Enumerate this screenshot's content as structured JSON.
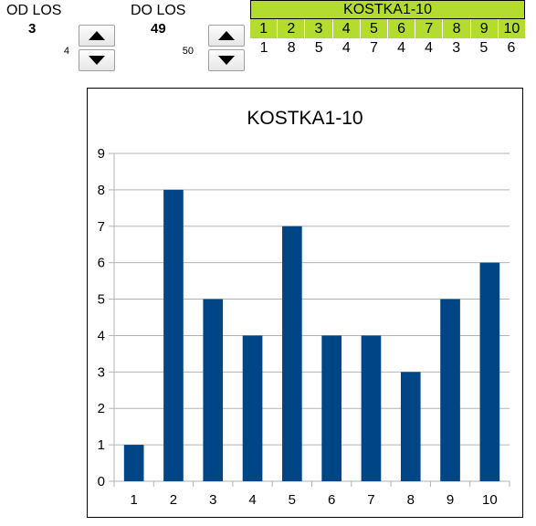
{
  "od": {
    "label": "OD LOS",
    "value": "3",
    "spinner_value": "4"
  },
  "do": {
    "label": "DO LOS",
    "value": "49",
    "spinner_value": "50"
  },
  "table": {
    "title": "KOSTKA1-10",
    "headers": [
      "1",
      "2",
      "3",
      "4",
      "5",
      "6",
      "7",
      "8",
      "9",
      "10"
    ],
    "values": [
      "1",
      "8",
      "5",
      "4",
      "7",
      "4",
      "4",
      "3",
      "5",
      "6"
    ],
    "header_color": "#b3dc2f"
  },
  "icons": {
    "up": "arrow-up-icon",
    "down": "arrow-down-icon"
  },
  "chart_data": {
    "type": "bar",
    "title": "KOSTKA1-10",
    "categories": [
      "1",
      "2",
      "3",
      "4",
      "5",
      "6",
      "7",
      "8",
      "9",
      "10"
    ],
    "values": [
      1,
      8,
      5,
      4,
      7,
      4,
      4,
      3,
      5,
      6
    ],
    "xlabel": "",
    "ylabel": "",
    "ylim": [
      0,
      9
    ],
    "yticks": [
      "0",
      "1",
      "2",
      "3",
      "4",
      "5",
      "6",
      "7",
      "8",
      "9"
    ],
    "grid": true,
    "legend": "none",
    "bar_color": "#004586"
  }
}
